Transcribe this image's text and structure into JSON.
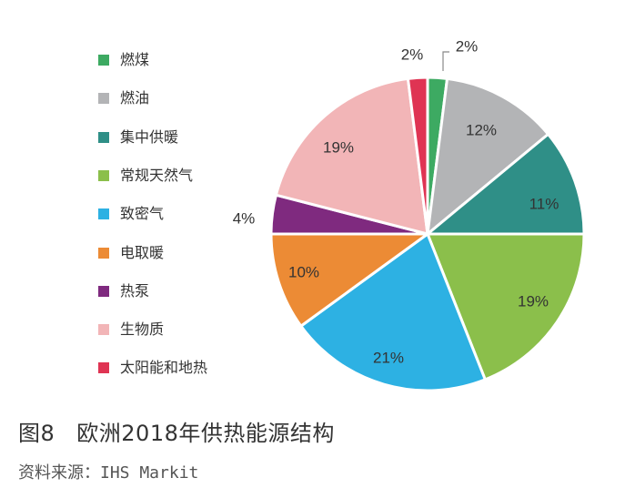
{
  "chart_data": {
    "type": "pie",
    "categories": [
      "燃煤",
      "燃油",
      "集中供暖",
      "常规天然气",
      "致密气",
      "电取暖",
      "热泵",
      "生物质",
      "太阳能和地热"
    ],
    "values": [
      2,
      12,
      11,
      19,
      21,
      10,
      4,
      19,
      2
    ],
    "labels": [
      "2%",
      "12%",
      "11%",
      "19%",
      "21%",
      "10%",
      "4%",
      "19%",
      "2%"
    ],
    "colors": [
      "#3daa62",
      "#b3b4b6",
      "#2f8f87",
      "#8bbf4b",
      "#2db1e3",
      "#ec8b35",
      "#7f2a7f",
      "#f2b5b7",
      "#df3453"
    ],
    "legend_position": "left"
  },
  "caption": {
    "figure_number": "图8",
    "title": "欧洲2018年供热能源结构"
  },
  "source": "资料来源：IHS Markit"
}
